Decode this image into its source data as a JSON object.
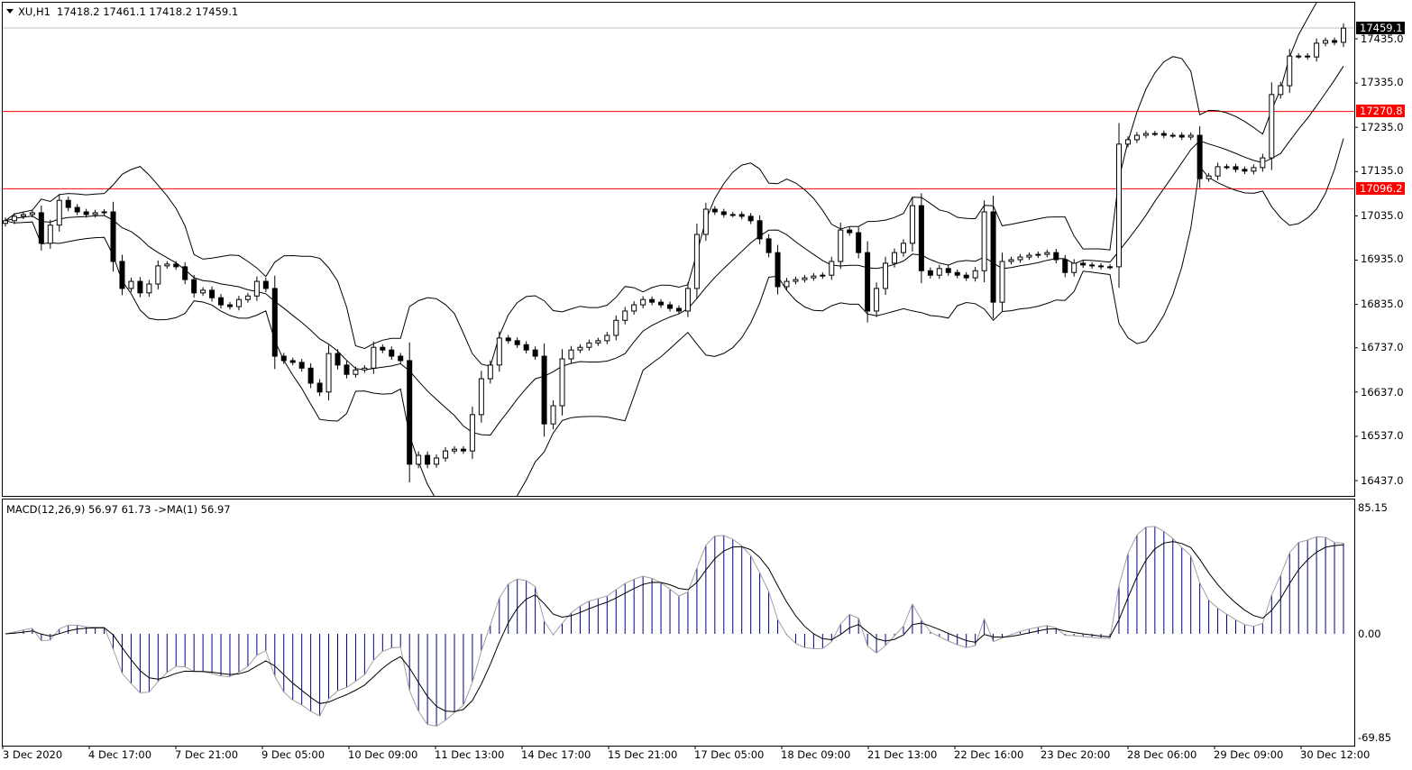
{
  "header": {
    "menu_icon": "triangle-down-icon",
    "symbol": "XU,H1",
    "ohlc": "17418.2 17461.1 17418.2 17459.1"
  },
  "macd_header": {
    "label": "MACD(12,26,9) 56.97 61.73  ->MA(1) 56.97"
  },
  "colors": {
    "background": "#ffffff",
    "candle_bull_body": "#ffffff",
    "candle_bear_body": "#000000",
    "level_line": "#ff0000",
    "current_price_line": "#c0c0c0",
    "macd_histogram": "#000080",
    "macd_line": "#a0a0a0",
    "signal_line": "#000000"
  },
  "price_axis": {
    "ticks": [
      "17435.0",
      "17335.0",
      "17235.0",
      "17135.0",
      "17035.0",
      "16935.0",
      "16835.0",
      "16737.0",
      "16637.0",
      "16537.0",
      "16437.0"
    ],
    "current_price": "17459.1",
    "levels": [
      "17270.8",
      "17096.2"
    ]
  },
  "macd_axis": {
    "ticks": [
      "85.15",
      "0.00",
      "-69.85"
    ]
  },
  "time_axis": {
    "ticks": [
      "3 Dec 2020",
      "4 Dec 17:00",
      "7 Dec 21:00",
      "9 Dec 05:00",
      "10 Dec 09:00",
      "11 Dec 13:00",
      "14 Dec 17:00",
      "15 Dec 21:00",
      "17 Dec 05:00",
      "18 Dec 09:00",
      "21 Dec 13:00",
      "22 Dec 16:00",
      "23 Dec 20:00",
      "28 Dec 06:00",
      "29 Dec 09:00",
      "30 Dec 12:00"
    ]
  },
  "chart_data": {
    "type": "candlestick",
    "symbol": "XU",
    "timeframe": "H1",
    "ylim": [
      16402,
      17516
    ],
    "macd_ylim": [
      -69.85,
      85.15
    ],
    "indicators": [
      "Bollinger Bands",
      "MACD(12,26,9)"
    ],
    "horizontal_levels": [
      17270.8,
      17096.2
    ],
    "last": {
      "open": 17418.2,
      "high": 17461.1,
      "low": 17418.2,
      "close": 17459.1
    },
    "closes": [
      17024,
      17034,
      17038,
      17042,
      16973,
      17014,
      17070,
      17054,
      17044,
      17038,
      17042,
      17044,
      16932,
      16871,
      16887,
      16861,
      16881,
      16922,
      16926,
      16920,
      16891,
      16861,
      16867,
      16850,
      16834,
      16830,
      16846,
      16854,
      16887,
      16871,
      16718,
      16708,
      16704,
      16691,
      16657,
      16637,
      16724,
      16698,
      16677,
      16687,
      16691,
      16738,
      16732,
      16718,
      16708,
      16474,
      16494,
      16474,
      16488,
      16504,
      16508,
      16504,
      16586,
      16667,
      16698,
      16759,
      16753,
      16744,
      16732,
      16718,
      16565,
      16606,
      16712,
      16732,
      16738,
      16748,
      16753,
      16765,
      16799,
      16820,
      16834,
      16846,
      16840,
      16834,
      16826,
      16820,
      16871,
      16993,
      17050,
      17044,
      17038,
      17038,
      17034,
      17024,
      16983,
      16952,
      16875,
      16887,
      16891,
      16895,
      16899,
      16901,
      16932,
      17003,
      16997,
      16952,
      16820,
      16871,
      16928,
      16952,
      16973,
      17058,
      16911,
      16901,
      16916,
      16907,
      16901,
      16895,
      16911,
      17044,
      16840,
      16932,
      16936,
      16942,
      16946,
      16948,
      16952,
      16936,
      16907,
      16928,
      16924,
      16922,
      16920,
      16920,
      17197,
      17207,
      17217,
      17221,
      17221,
      17217,
      17217,
      17213,
      17217,
      17119,
      17125,
      17146,
      17146,
      17140,
      17136,
      17144,
      17166,
      17309,
      17329,
      17396,
      17396,
      17394,
      17425,
      17431,
      17427,
      17459.1
    ]
  }
}
